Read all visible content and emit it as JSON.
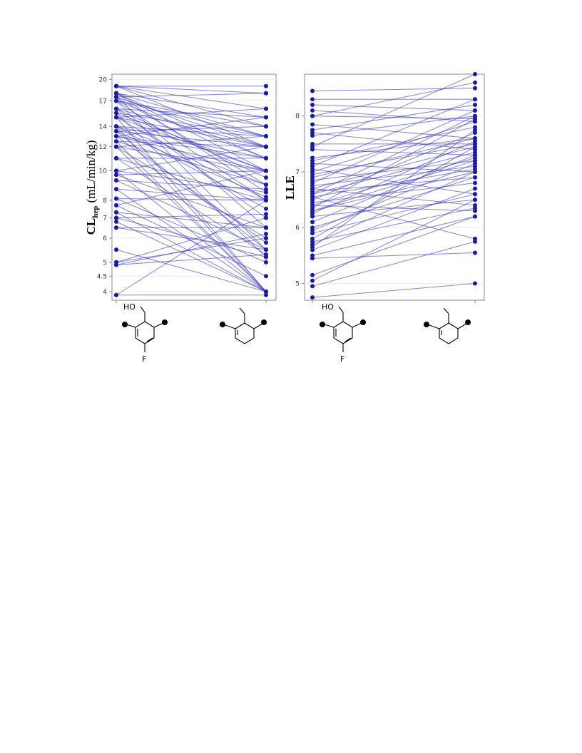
{
  "chart_data": [
    {
      "type": "line",
      "ylabel_main": "CL",
      "ylabel_sub": "hep",
      "ylabel_units": " (mL/min/kg)",
      "y_scale": "log",
      "ylim": [
        3.75,
        20.8
      ],
      "y_ticks": [
        "4",
        "4.5",
        "5",
        "6",
        "7",
        "8",
        "10",
        "12",
        "14",
        "17",
        "20"
      ],
      "x": [
        "hydroxymethyl-fluorophenyl",
        "ethylphenyl"
      ],
      "grid": true,
      "series_color": "#1a1aa8",
      "pairs": [
        [
          19,
          19
        ],
        [
          19,
          18
        ],
        [
          19,
          14
        ],
        [
          19,
          16
        ],
        [
          19,
          12
        ],
        [
          18,
          15
        ],
        [
          18,
          13
        ],
        [
          18,
          11
        ],
        [
          18,
          10
        ],
        [
          18,
          8.5
        ],
        [
          17.5,
          18
        ],
        [
          17.5,
          12
        ],
        [
          17.5,
          9
        ],
        [
          17.5,
          6.5
        ],
        [
          17,
          14
        ],
        [
          17,
          13
        ],
        [
          17,
          11
        ],
        [
          17,
          8
        ],
        [
          17,
          5.5
        ],
        [
          16,
          15
        ],
        [
          16,
          12
        ],
        [
          16,
          9.5
        ],
        [
          16,
          7
        ],
        [
          15.5,
          13
        ],
        [
          15.5,
          10
        ],
        [
          15.5,
          5.2
        ],
        [
          15,
          16
        ],
        [
          15,
          12
        ],
        [
          15,
          10
        ],
        [
          15,
          8
        ],
        [
          15,
          4
        ],
        [
          14,
          13
        ],
        [
          14,
          11
        ],
        [
          14,
          9
        ],
        [
          14,
          7.5
        ],
        [
          14,
          4
        ],
        [
          13.5,
          14
        ],
        [
          13.5,
          12
        ],
        [
          13.5,
          8.2
        ],
        [
          13.5,
          5.5
        ],
        [
          13,
          15
        ],
        [
          13,
          11
        ],
        [
          13,
          10
        ],
        [
          13,
          5.8
        ],
        [
          12.5,
          12
        ],
        [
          12.5,
          9
        ],
        [
          12.5,
          4
        ],
        [
          12,
          13
        ],
        [
          12,
          10
        ],
        [
          12,
          6
        ],
        [
          12,
          4
        ],
        [
          11,
          11
        ],
        [
          11,
          8
        ],
        [
          11,
          5.3
        ],
        [
          10,
          12
        ],
        [
          10,
          8.5
        ],
        [
          10,
          4
        ],
        [
          9.7,
          10
        ],
        [
          9.7,
          6.5
        ],
        [
          9.3,
          8.7
        ],
        [
          9.3,
          5.5
        ],
        [
          8.7,
          8
        ],
        [
          8.7,
          4
        ],
        [
          8.1,
          8
        ],
        [
          8.1,
          5
        ],
        [
          7.7,
          10
        ],
        [
          7.7,
          4.5
        ],
        [
          7.3,
          6.5
        ],
        [
          7.3,
          4
        ],
        [
          7.0,
          7.2
        ],
        [
          7.0,
          5.2
        ],
        [
          6.8,
          4
        ],
        [
          6.5,
          6.5
        ],
        [
          6.5,
          5.5
        ],
        [
          5.5,
          4
        ],
        [
          5.0,
          6
        ],
        [
          5.0,
          7
        ],
        [
          4.9,
          5.3
        ],
        [
          4.9,
          6.2
        ],
        [
          3.9,
          3.9
        ],
        [
          3.9,
          8
        ]
      ],
      "structures": {
        "left_label": "HO",
        "left_substituent": "F"
      }
    },
    {
      "type": "line",
      "ylabel_main": "LLE",
      "y_scale": "linear",
      "ylim": [
        4.7,
        8.75
      ],
      "y_ticks": [
        "5",
        "6",
        "7",
        "8"
      ],
      "x": [
        "hydroxymethyl-fluorophenyl",
        "ethylphenyl"
      ],
      "grid": true,
      "series_color": "#1a1aa8",
      "pairs": [
        [
          8.45,
          8.5
        ],
        [
          8.3,
          8.3
        ],
        [
          8.2,
          8.1
        ],
        [
          8.1,
          7.9
        ],
        [
          8.0,
          8.6
        ],
        [
          7.85,
          7.6
        ],
        [
          7.75,
          8.2
        ],
        [
          7.7,
          7.4
        ],
        [
          7.65,
          8.0
        ],
        [
          7.5,
          7.5
        ],
        [
          7.45,
          8.75
        ],
        [
          7.4,
          7.3
        ],
        [
          7.2,
          7.8
        ],
        [
          7.15,
          7.0
        ],
        [
          7.1,
          8.3
        ],
        [
          7.05,
          6.6
        ],
        [
          7.0,
          7.9
        ],
        [
          6.95,
          7.5
        ],
        [
          6.9,
          7.6
        ],
        [
          6.85,
          7.2
        ],
        [
          6.8,
          8.1
        ],
        [
          6.75,
          7.1
        ],
        [
          6.7,
          7.45
        ],
        [
          6.65,
          6.9
        ],
        [
          6.6,
          7.35
        ],
        [
          6.6,
          8.0
        ],
        [
          6.55,
          7.05
        ],
        [
          6.55,
          5.8
        ],
        [
          6.5,
          7.7
        ],
        [
          6.45,
          6.8
        ],
        [
          6.4,
          7.25
        ],
        [
          6.4,
          6.3
        ],
        [
          6.35,
          7.95
        ],
        [
          6.3,
          7.0
        ],
        [
          6.25,
          7.55
        ],
        [
          6.2,
          6.5
        ],
        [
          6.1,
          7.3
        ],
        [
          6.0,
          6.9
        ],
        [
          5.95,
          7.15
        ],
        [
          5.9,
          6.6
        ],
        [
          5.8,
          7.45
        ],
        [
          5.75,
          6.35
        ],
        [
          5.7,
          7.0
        ],
        [
          5.65,
          7.75
        ],
        [
          5.6,
          6.7
        ],
        [
          5.5,
          6.2
        ],
        [
          5.45,
          5.55
        ],
        [
          5.15,
          6.2
        ],
        [
          5.05,
          6.5
        ],
        [
          4.95,
          5.75
        ],
        [
          4.75,
          5.0
        ],
        [
          8.0,
          7.95
        ],
        [
          7.25,
          7.6
        ],
        [
          6.7,
          6.4
        ],
        [
          6.3,
          7.2
        ]
      ],
      "structures": {
        "left_label": "HO",
        "left_substituent": "F"
      }
    }
  ]
}
